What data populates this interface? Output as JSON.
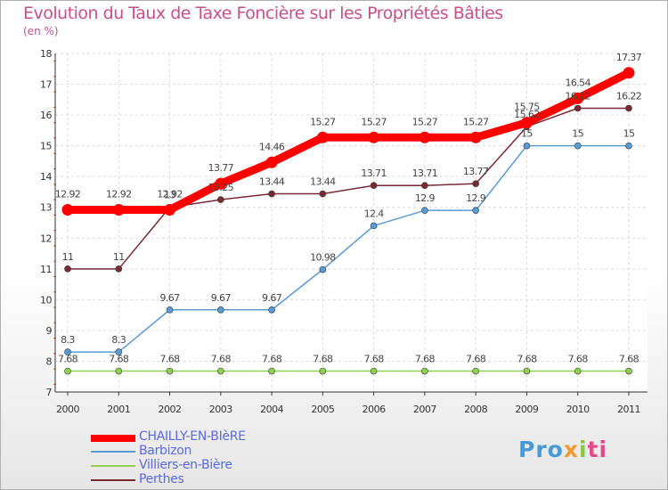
{
  "chart_data": {
    "type": "line",
    "title": "Evolution du Taux de Taxe Foncière sur les Propriétés Bâties",
    "ylabel": "(en %)",
    "xlabel": "",
    "categories": [
      "2000",
      "2001",
      "2002",
      "2003",
      "2004",
      "2005",
      "2006",
      "2007",
      "2008",
      "2009",
      "2010",
      "2011"
    ],
    "ylim": [
      7,
      18
    ],
    "yticks": [
      7,
      8,
      9,
      10,
      11,
      12,
      13,
      14,
      15,
      16,
      17,
      18
    ],
    "grid": true,
    "legend_position": "bottom-left",
    "series": [
      {
        "name": "CHAILLY-EN-BIèRE",
        "color": "#ff0000",
        "values": [
          12.92,
          12.92,
          12.92,
          13.77,
          14.46,
          15.27,
          15.27,
          15.27,
          15.27,
          15.75,
          16.54,
          17.37
        ],
        "labels": [
          "12.92",
          "12.92",
          "12.92",
          "13.77",
          "14.46",
          "15.27",
          "15.27",
          "15.27",
          "15.27",
          "15.75",
          "16.54",
          "17.37"
        ]
      },
      {
        "name": "Barbizon",
        "color": "#5b9bd5",
        "values": [
          8.3,
          8.3,
          9.67,
          9.67,
          9.67,
          10.98,
          12.4,
          12.9,
          12.9,
          15,
          15,
          15
        ],
        "labels": [
          "8.3",
          "8.3",
          "9.67",
          "9.67",
          "9.67",
          "10.98",
          "12.4",
          "12.9",
          "12.9",
          "15",
          "15",
          "15"
        ]
      },
      {
        "name": "Villiers-en-Bière",
        "color": "#8fd14f",
        "values": [
          7.68,
          7.68,
          7.68,
          7.68,
          7.68,
          7.68,
          7.68,
          7.68,
          7.68,
          7.68,
          7.68,
          7.68
        ],
        "labels": [
          "7.68",
          "7.68",
          "7.68",
          "7.68",
          "7.68",
          "7.68",
          "7.68",
          "7.68",
          "7.68",
          "7.68",
          "7.68",
          "7.68"
        ]
      },
      {
        "name": "Perthes",
        "color": "#7a2a33",
        "values": [
          11,
          11,
          13,
          13.25,
          13.44,
          13.44,
          13.71,
          13.71,
          13.77,
          15.62,
          16.22,
          16.22
        ],
        "labels": [
          "11",
          "11",
          "13",
          "13.25",
          "13.44",
          "13.44",
          "13.71",
          "13.71",
          "13.77",
          "15.62",
          "16.22",
          "16.22"
        ]
      }
    ]
  },
  "logo": {
    "part1": "Pro",
    "part2": "x",
    "part3": "i",
    "part4": "ti"
  }
}
